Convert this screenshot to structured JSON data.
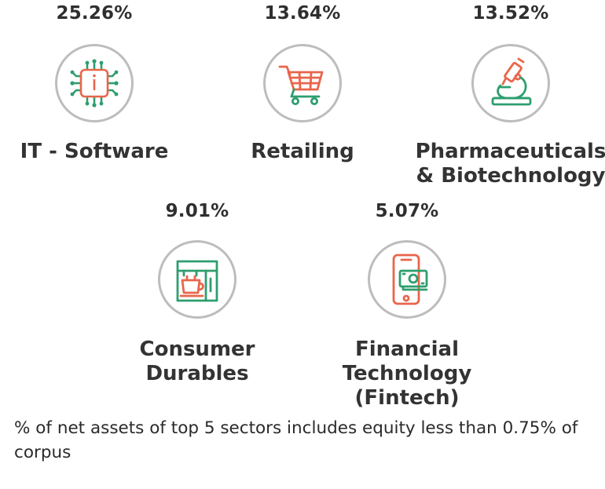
{
  "colors": {
    "green": "#2e9e6f",
    "orange": "#e8664b",
    "circle_border": "#bdbdbd",
    "text": "#2f2f2f"
  },
  "sectors": [
    {
      "percent": "25.26%",
      "name_lines": [
        "IT - Software"
      ],
      "icon": "chip-icon"
    },
    {
      "percent": "13.64%",
      "name_lines": [
        "Retailing"
      ],
      "icon": "shopping-cart-icon"
    },
    {
      "percent": "13.52%",
      "name_lines": [
        "Pharmaceuticals",
        "& Biotechnology"
      ],
      "icon": "microscope-icon"
    },
    {
      "percent": "9.01%",
      "name_lines": [
        "Consumer",
        "Durables"
      ],
      "icon": "coffee-machine-icon"
    },
    {
      "percent": "5.07%",
      "name_lines": [
        "Financial",
        "Technology",
        "(Fintech)"
      ],
      "icon": "mobile-payment-icon"
    }
  ],
  "footnote": "% of net assets of top 5 sectors includes equity less than 0.75% of corpus"
}
